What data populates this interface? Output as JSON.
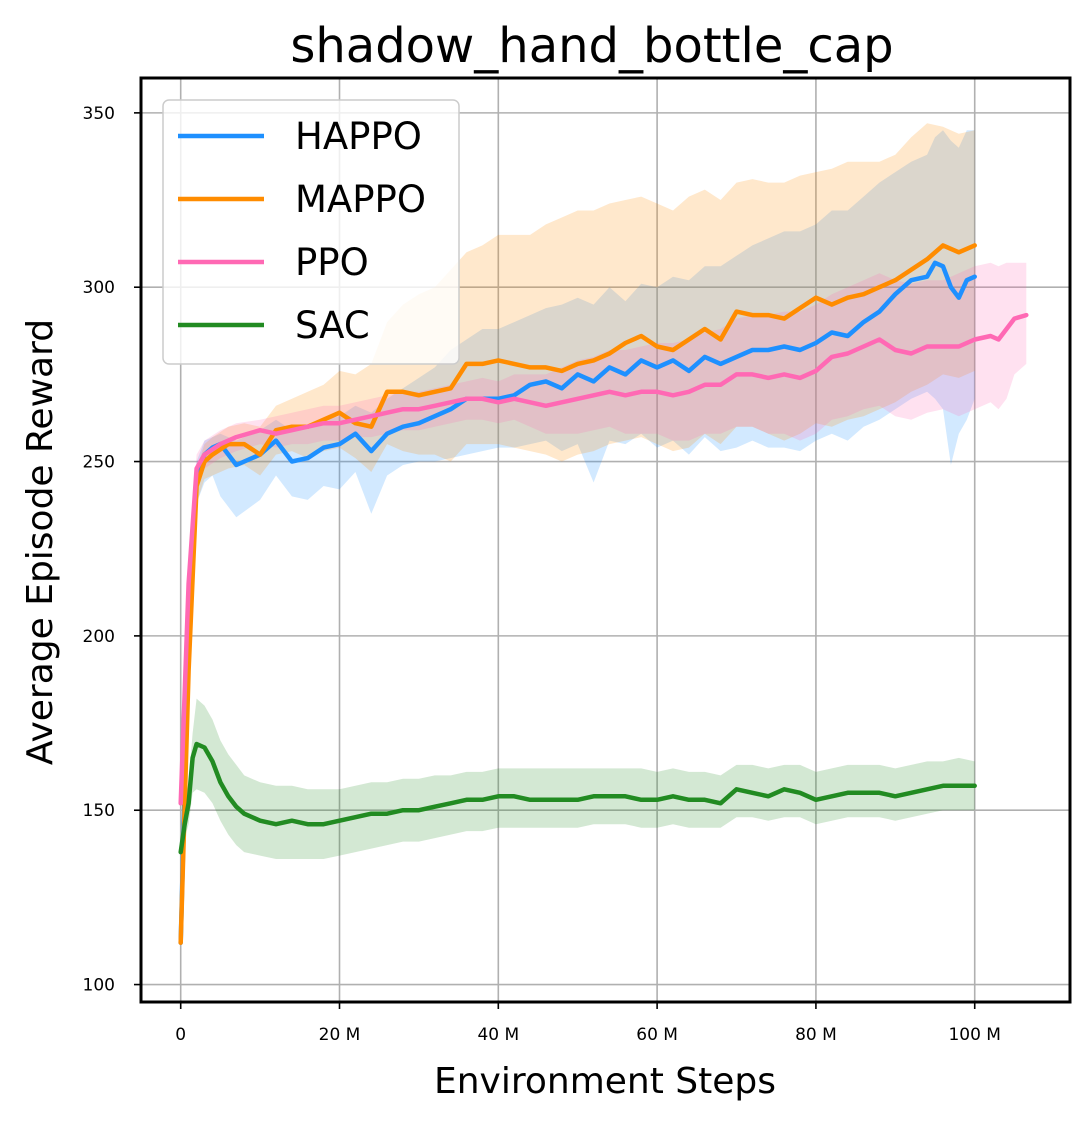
{
  "chart_data": {
    "type": "line",
    "title": "shadow_hand_bottle_cap",
    "xlabel": "Environment Steps",
    "ylabel": "Average Episode Reward",
    "xlim": [
      -5,
      112
    ],
    "ylim": [
      95,
      360
    ],
    "x_ticks": [
      0,
      20,
      40,
      60,
      80,
      100
    ],
    "x_tick_labels": [
      "0",
      "20 M",
      "40 M",
      "60 M",
      "80 M",
      "100 M"
    ],
    "y_ticks": [
      100,
      150,
      200,
      250,
      300,
      350
    ],
    "y_tick_labels": [
      "100",
      "150",
      "200",
      "250",
      "300",
      "350"
    ],
    "grid": true,
    "legend_position": "top-left",
    "series": [
      {
        "name": "HAPPO",
        "color": "#1E90FF",
        "x": [
          0,
          1,
          2,
          3,
          4,
          5,
          7,
          10,
          12,
          14,
          16,
          18,
          20,
          22,
          24,
          26,
          28,
          30,
          32,
          34,
          36,
          38,
          40,
          42,
          44,
          46,
          48,
          50,
          52,
          54,
          56,
          58,
          60,
          62,
          64,
          66,
          68,
          70,
          72,
          74,
          76,
          78,
          80,
          82,
          84,
          86,
          88,
          90,
          92,
          94,
          95,
          96,
          97,
          98,
          99,
          100
        ],
        "y": [
          112,
          200,
          245,
          252,
          254,
          255,
          249,
          252,
          256,
          250,
          251,
          254,
          255,
          258,
          253,
          258,
          260,
          261,
          263,
          265,
          268,
          268,
          268,
          269,
          272,
          273,
          271,
          275,
          273,
          277,
          275,
          279,
          277,
          279,
          276,
          280,
          278,
          280,
          282,
          282,
          283,
          282,
          284,
          287,
          286,
          290,
          293,
          298,
          302,
          303,
          307,
          306,
          300,
          297,
          302,
          303
        ],
        "upper": [
          112,
          205,
          250,
          256,
          257,
          258,
          256,
          259,
          262,
          259,
          260,
          262,
          263,
          266,
          264,
          268,
          271,
          274,
          277,
          282,
          285,
          288,
          288,
          290,
          292,
          294,
          295,
          297,
          295,
          300,
          296,
          301,
          300,
          303,
          302,
          306,
          306,
          309,
          312,
          314,
          316,
          316,
          318,
          322,
          322,
          326,
          330,
          333,
          336,
          338,
          343,
          345,
          342,
          340,
          345,
          345
        ],
        "lower": [
          112,
          190,
          238,
          244,
          246,
          240,
          234,
          239,
          246,
          240,
          239,
          243,
          242,
          247,
          235,
          246,
          249,
          250,
          250,
          251,
          252,
          253,
          254,
          254,
          255,
          256,
          253,
          255,
          244,
          256,
          255,
          258,
          254,
          256,
          252,
          257,
          253,
          254,
          256,
          254,
          254,
          253,
          256,
          258,
          256,
          260,
          262,
          265,
          268,
          270,
          268,
          265,
          249,
          258,
          262,
          268
        ]
      },
      {
        "name": "MAPPO",
        "color": "#FF8C00",
        "x": [
          0,
          1,
          2,
          3,
          4,
          6,
          8,
          10,
          12,
          14,
          16,
          18,
          20,
          22,
          24,
          26,
          28,
          30,
          32,
          34,
          36,
          38,
          40,
          42,
          44,
          46,
          48,
          50,
          52,
          54,
          56,
          58,
          60,
          62,
          64,
          66,
          68,
          70,
          72,
          74,
          76,
          78,
          80,
          82,
          84,
          86,
          88,
          90,
          92,
          94,
          96,
          98,
          100
        ],
        "y": [
          112,
          190,
          243,
          250,
          252,
          255,
          255,
          252,
          259,
          260,
          260,
          262,
          264,
          261,
          260,
          270,
          270,
          269,
          270,
          271,
          278,
          278,
          279,
          278,
          277,
          277,
          276,
          278,
          279,
          281,
          284,
          286,
          283,
          282,
          285,
          288,
          285,
          293,
          292,
          292,
          291,
          294,
          297,
          295,
          297,
          298,
          300,
          302,
          305,
          308,
          312,
          310,
          312
        ],
        "upper": [
          112,
          195,
          248,
          255,
          257,
          260,
          261,
          260,
          266,
          268,
          270,
          272,
          276,
          275,
          278,
          290,
          295,
          298,
          300,
          305,
          310,
          312,
          315,
          315,
          315,
          318,
          320,
          322,
          322,
          324,
          325,
          326,
          324,
          322,
          326,
          328,
          325,
          330,
          331,
          330,
          330,
          332,
          333,
          334,
          336,
          336,
          336,
          338,
          343,
          347,
          346,
          344,
          345
        ],
        "lower": [
          112,
          185,
          238,
          245,
          246,
          248,
          249,
          246,
          252,
          253,
          251,
          253,
          254,
          251,
          247,
          255,
          253,
          252,
          252,
          250,
          255,
          255,
          255,
          254,
          253,
          252,
          250,
          252,
          253,
          255,
          256,
          257,
          255,
          253,
          254,
          258,
          255,
          260,
          260,
          258,
          256,
          258,
          261,
          260,
          262,
          263,
          265,
          267,
          270,
          272,
          275,
          274,
          276
        ]
      },
      {
        "name": "PPO",
        "color": "#FF69B4",
        "x": [
          0,
          1,
          2,
          3,
          5,
          7,
          10,
          12,
          14,
          16,
          18,
          20,
          22,
          24,
          26,
          28,
          30,
          32,
          34,
          36,
          38,
          40,
          42,
          44,
          46,
          48,
          50,
          52,
          54,
          56,
          58,
          60,
          62,
          64,
          66,
          68,
          70,
          72,
          74,
          76,
          78,
          80,
          82,
          84,
          86,
          88,
          90,
          92,
          94,
          96,
          98,
          100,
          102,
          103,
          104,
          105,
          106.5
        ],
        "y": [
          152,
          215,
          248,
          252,
          255,
          257,
          259,
          258,
          259,
          260,
          261,
          261,
          262,
          263,
          264,
          265,
          265,
          266,
          267,
          268,
          268,
          267,
          268,
          267,
          266,
          267,
          268,
          269,
          270,
          269,
          270,
          270,
          269,
          270,
          272,
          272,
          275,
          275,
          274,
          275,
          274,
          276,
          280,
          281,
          283,
          285,
          282,
          281,
          283,
          283,
          283,
          285,
          286,
          285,
          288,
          291,
          292
        ],
        "upper": [
          152,
          220,
          252,
          256,
          259,
          261,
          262,
          263,
          264,
          265,
          266,
          266,
          267,
          268,
          269,
          270,
          270,
          271,
          272,
          273,
          274,
          273,
          275,
          275,
          275,
          277,
          279,
          280,
          282,
          282,
          283,
          284,
          284,
          285,
          287,
          288,
          291,
          292,
          292,
          293,
          293,
          295,
          298,
          300,
          302,
          304,
          302,
          301,
          302,
          302,
          304,
          306,
          307,
          306,
          307,
          307,
          307
        ],
        "lower": [
          152,
          210,
          244,
          248,
          251,
          253,
          255,
          254,
          255,
          255,
          256,
          256,
          257,
          257,
          258,
          259,
          259,
          260,
          261,
          262,
          262,
          261,
          262,
          260,
          258,
          258,
          258,
          259,
          260,
          258,
          258,
          258,
          256,
          256,
          258,
          258,
          260,
          260,
          258,
          258,
          256,
          258,
          262,
          263,
          265,
          266,
          263,
          262,
          264,
          265,
          263,
          265,
          267,
          265,
          268,
          275,
          278
        ]
      },
      {
        "name": "SAC",
        "color": "#228B22",
        "x": [
          0,
          0.5,
          1,
          1.5,
          2,
          3,
          4,
          5,
          6,
          7,
          8,
          10,
          12,
          14,
          16,
          18,
          20,
          22,
          24,
          26,
          28,
          30,
          32,
          34,
          36,
          38,
          40,
          42,
          44,
          46,
          48,
          50,
          52,
          54,
          56,
          58,
          60,
          62,
          64,
          66,
          68,
          70,
          72,
          74,
          76,
          78,
          80,
          82,
          84,
          86,
          88,
          90,
          92,
          94,
          96,
          98,
          100
        ],
        "y": [
          138,
          146,
          152,
          165,
          169,
          168,
          164,
          158,
          154,
          151,
          149,
          147,
          146,
          147,
          146,
          146,
          147,
          148,
          149,
          149,
          150,
          150,
          151,
          152,
          153,
          153,
          154,
          154,
          153,
          153,
          153,
          153,
          154,
          154,
          154,
          153,
          153,
          154,
          153,
          153,
          152,
          156,
          155,
          154,
          156,
          155,
          153,
          154,
          155,
          155,
          155,
          154,
          155,
          156,
          157,
          157,
          157
        ],
        "upper": [
          140,
          150,
          158,
          172,
          182,
          180,
          176,
          170,
          166,
          163,
          160,
          158,
          157,
          157,
          156,
          156,
          156,
          157,
          158,
          158,
          159,
          159,
          160,
          160,
          161,
          161,
          162,
          162,
          162,
          162,
          162,
          162,
          162,
          162,
          162,
          162,
          161,
          162,
          161,
          161,
          160,
          163,
          163,
          162,
          163,
          163,
          161,
          162,
          163,
          163,
          163,
          162,
          163,
          164,
          164,
          165,
          164
        ],
        "lower": [
          136,
          142,
          146,
          155,
          156,
          155,
          152,
          147,
          143,
          140,
          138,
          137,
          136,
          136,
          136,
          136,
          137,
          138,
          139,
          140,
          141,
          141,
          142,
          143,
          144,
          144,
          145,
          145,
          145,
          145,
          145,
          145,
          146,
          146,
          146,
          145,
          145,
          146,
          145,
          145,
          145,
          148,
          148,
          147,
          148,
          148,
          146,
          147,
          148,
          148,
          148,
          147,
          148,
          149,
          150,
          150,
          150
        ]
      }
    ]
  }
}
